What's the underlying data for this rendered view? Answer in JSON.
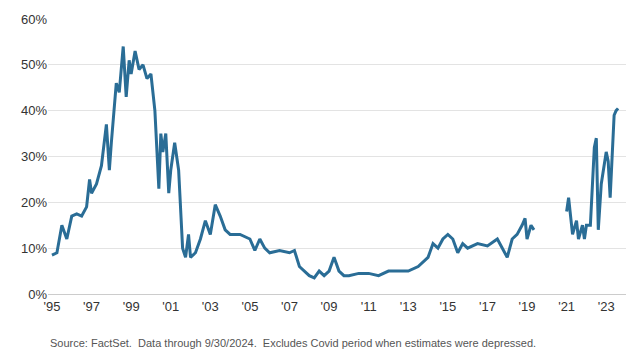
{
  "chart_data": {
    "type": "line",
    "source": "Source: FactSet.  Data through 9/30/2024.  Excludes Covid period when estimates were depressed.",
    "color": "#2a6d96",
    "grid": true,
    "x": [
      1995.0,
      1995.25,
      1995.5,
      1995.75,
      1996.0,
      1996.25,
      1996.5,
      1996.75,
      1996.9,
      1997.0,
      1997.25,
      1997.5,
      1997.75,
      1997.9,
      1998.0,
      1998.25,
      1998.4,
      1998.5,
      1998.6,
      1998.75,
      1998.9,
      1999.0,
      1999.2,
      1999.4,
      1999.6,
      1999.8,
      2000.0,
      2000.2,
      2000.4,
      2000.5,
      2000.6,
      2000.75,
      2000.9,
      2001.0,
      2001.2,
      2001.4,
      2001.6,
      2001.75,
      2001.9,
      2002.0,
      2002.25,
      2002.5,
      2002.75,
      2003.0,
      2003.25,
      2003.5,
      2003.75,
      2004.0,
      2004.5,
      2005.0,
      2005.25,
      2005.5,
      2005.75,
      2006.0,
      2006.5,
      2007.0,
      2007.25,
      2007.5,
      2007.75,
      2008.0,
      2008.25,
      2008.5,
      2008.75,
      2009.0,
      2009.25,
      2009.5,
      2009.75,
      2010.0,
      2010.5,
      2011.0,
      2011.5,
      2012.0,
      2012.5,
      2013.0,
      2013.5,
      2014.0,
      2014.25,
      2014.5,
      2014.75,
      2015.0,
      2015.25,
      2015.5,
      2015.75,
      2016.0,
      2016.5,
      2017.0,
      2017.5,
      2017.75,
      2018.0,
      2018.25,
      2018.5,
      2018.75,
      2018.9,
      2019.0,
      2019.2,
      2019.35,
      2019.5,
      2021.0,
      2021.1,
      2021.3,
      2021.5,
      2021.6,
      2021.8,
      2021.9,
      2022.0,
      2022.2,
      2022.4,
      2022.5,
      2022.6,
      2022.75,
      2022.9,
      2023.0,
      2023.1,
      2023.2,
      2023.3,
      2023.4,
      2023.5,
      2023.6
    ],
    "values": [
      8.5,
      9,
      15,
      12,
      17,
      17.5,
      17,
      19,
      25,
      22,
      24,
      28,
      37,
      27,
      33,
      46,
      44,
      50,
      54,
      43,
      51,
      48,
      53,
      49,
      50,
      47,
      48,
      40,
      23,
      35,
      31,
      35,
      22,
      27,
      33,
      27,
      10,
      8,
      13,
      8,
      9,
      12,
      16,
      13,
      19.5,
      17,
      14,
      13,
      13,
      12,
      9.5,
      12,
      10,
      9,
      9.5,
      9,
      9.5,
      6,
      5,
      4,
      3.5,
      5,
      4,
      5,
      8,
      5,
      4,
      4,
      4.5,
      4.5,
      4,
      5,
      5,
      5,
      6,
      8,
      11,
      10,
      12,
      13,
      12,
      9,
      11,
      10,
      11,
      10.5,
      12,
      10,
      8,
      12,
      13,
      15,
      16.5,
      12,
      15,
      14,
      null,
      18,
      21,
      13,
      16,
      12,
      15,
      12,
      15,
      15,
      32,
      34,
      14,
      24,
      28,
      31,
      29,
      21,
      30,
      39,
      40,
      40.5
    ],
    "xlim": [
      1994.8,
      2024
    ],
    "xticks": [
      {
        "value": 1995,
        "label": "'95"
      },
      {
        "value": 1997,
        "label": "'97"
      },
      {
        "value": 1999,
        "label": "'99"
      },
      {
        "value": 2001,
        "label": "'01"
      },
      {
        "value": 2003,
        "label": "'03"
      },
      {
        "value": 2005,
        "label": "'05"
      },
      {
        "value": 2007,
        "label": "'07"
      },
      {
        "value": 2009,
        "label": "'09"
      },
      {
        "value": 2011,
        "label": "'11"
      },
      {
        "value": 2013,
        "label": "'13"
      },
      {
        "value": 2015,
        "label": "'15"
      },
      {
        "value": 2017,
        "label": "'17"
      },
      {
        "value": 2019,
        "label": "'19"
      },
      {
        "value": 2021,
        "label": "'21"
      },
      {
        "value": 2023,
        "label": "'23"
      }
    ],
    "ylim": [
      0,
      60
    ],
    "yticks": [
      {
        "value": 0,
        "label": "0%"
      },
      {
        "value": 10,
        "label": "10%"
      },
      {
        "value": 20,
        "label": "20%"
      },
      {
        "value": 30,
        "label": "30%"
      },
      {
        "value": 40,
        "label": "40%"
      },
      {
        "value": 50,
        "label": "50%"
      },
      {
        "value": 60,
        "label": "60%"
      }
    ]
  }
}
